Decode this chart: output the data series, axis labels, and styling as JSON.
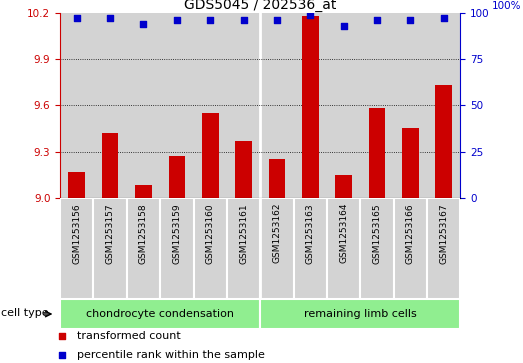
{
  "title": "GDS5045 / 202536_at",
  "samples": [
    "GSM1253156",
    "GSM1253157",
    "GSM1253158",
    "GSM1253159",
    "GSM1253160",
    "GSM1253161",
    "GSM1253162",
    "GSM1253163",
    "GSM1253164",
    "GSM1253165",
    "GSM1253166",
    "GSM1253167"
  ],
  "red_values": [
    9.17,
    9.42,
    9.08,
    9.27,
    9.55,
    9.37,
    9.25,
    10.18,
    9.15,
    9.58,
    9.45,
    9.73
  ],
  "blue_values": [
    97,
    97,
    94,
    96,
    96,
    96,
    96,
    99,
    93,
    96,
    96,
    97
  ],
  "ylim_left": [
    9.0,
    10.2
  ],
  "ylim_right": [
    0,
    100
  ],
  "yticks_left": [
    9.0,
    9.3,
    9.6,
    9.9,
    10.2
  ],
  "yticks_right": [
    0,
    25,
    50,
    75,
    100
  ],
  "group1_label": "chondrocyte condensation",
  "group2_label": "remaining limb cells",
  "group1_count": 6,
  "group2_count": 6,
  "cell_type_label": "cell type",
  "legend_red": "transformed count",
  "legend_blue": "percentile rank within the sample",
  "red_color": "#cc0000",
  "blue_color": "#0000cc",
  "green_bg": "#90EE90",
  "bar_bg": "#d3d3d3",
  "white_bg": "#ffffff",
  "fig_width": 5.23,
  "fig_height": 3.63,
  "dpi": 100
}
